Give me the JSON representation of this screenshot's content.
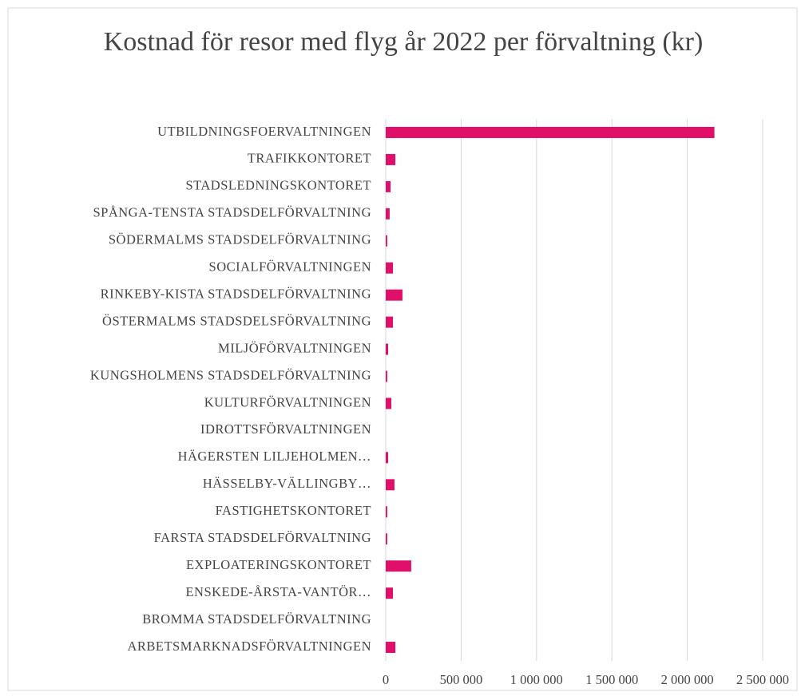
{
  "chart_data": {
    "type": "bar",
    "orientation": "horizontal",
    "title": "Kostnad för resor med flyg år 2022 per förvaltning (kr)",
    "categories": [
      "UTBILDNINGSFOERVALTNINGEN",
      "TRAFIKKONTORET",
      "STADSLEDNINGSKONTORET",
      "SPÅNGA-TENSTA STADSDELFÖRVALTNING",
      "SÖDERMALMS STADSDELFÖRVALTNING",
      "SOCIALFÖRVALTNINGEN",
      "RINKEBY-KISTA STADSDELFÖRVALTNING",
      "ÖSTERMALMS STADSDELSFÖRVALTNING",
      "MILJÖFÖRVALTNINGEN",
      "KUNGSHOLMENS STADSDELFÖRVALTNING",
      "KULTURFÖRVALTNINGEN",
      "IDROTTSFÖRVALTNINGEN",
      "HÄGERSTEN LILJEHOLMEN…",
      "HÄSSELBY-VÄLLINGBY…",
      "FASTIGHETSKONTORET",
      "FARSTA STADSDELFÖRVALTNING",
      "EXPLOATERINGSKONTORET",
      "ENSKEDE-ÅRSTA-VANTÖR…",
      "BROMMA STADSDELFÖRVALTNING",
      "ARBETSMARKNADSFÖRVALTNINGEN"
    ],
    "values": [
      2180000,
      64000,
      32000,
      26000,
      10000,
      48000,
      111000,
      48000,
      16000,
      10000,
      37000,
      0,
      16000,
      58000,
      10000,
      10000,
      169000,
      48000,
      0,
      64000
    ],
    "color": "#e0106a",
    "xlim": [
      0,
      2500000
    ],
    "xticks": [
      0,
      {
        "value": 500000,
        "label": "500 000"
      },
      {
        "value": 1000000,
        "label": "1 000 000"
      },
      {
        "value": 1500000,
        "label": "1 500 000"
      },
      {
        "value": 2000000,
        "label": "2 000 000"
      },
      {
        "value": 2500000,
        "label": "2 500 000"
      }
    ],
    "grid": true
  }
}
